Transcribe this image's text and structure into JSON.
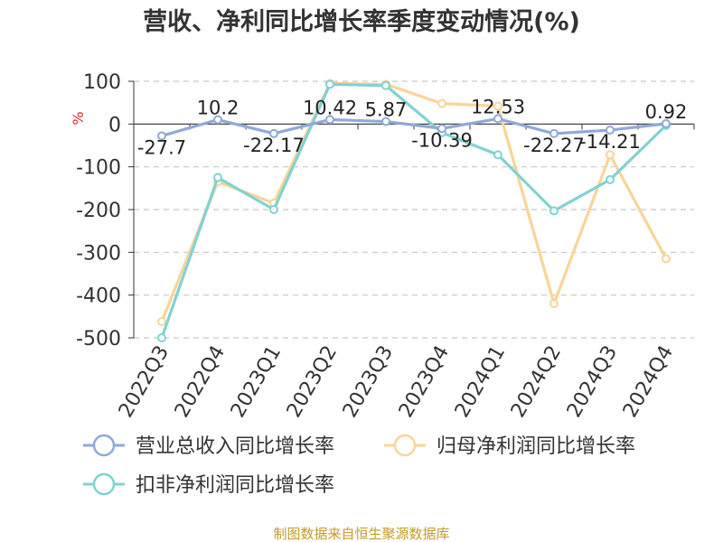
{
  "chart_data": {
    "type": "line",
    "title": "营收、净利同比增长率季度变动情况(%)",
    "ylabel": "%",
    "categories": [
      "2022Q3",
      "2022Q4",
      "2023Q1",
      "2023Q2",
      "2023Q3",
      "2023Q4",
      "2024Q1",
      "2024Q2",
      "2024Q3",
      "2024Q4"
    ],
    "ylim": [
      -500,
      100
    ],
    "yticks": [
      "100",
      "0",
      "-100",
      "-200",
      "-300",
      "-400",
      "-500"
    ],
    "grid": true,
    "legend_position": "bottom",
    "series": [
      {
        "name": "营业总收入同比增长率",
        "color": "#8fa9d8",
        "values": [
          -27.7,
          10.2,
          -22.17,
          10.42,
          5.87,
          -10.39,
          12.53,
          -22.27,
          -14.21,
          0.92
        ],
        "labels": [
          "-27.7",
          "10.2",
          "-22.17",
          "10.42",
          "5.87",
          "-10.39",
          "12.53",
          "-22.27",
          "-14.21",
          "0.92"
        ]
      },
      {
        "name": "归母净利润同比增长率",
        "color": "#f8d597",
        "values": [
          -462,
          -135,
          -185,
          95,
          93,
          48,
          42,
          -420,
          -72,
          -315
        ]
      },
      {
        "name": "扣非净利润同比增长率",
        "color": "#7fd3d3",
        "values": [
          -500,
          -125,
          -200,
          93,
          90,
          -20,
          -72,
          -203,
          -130,
          -3
        ]
      }
    ]
  },
  "footer": {
    "source": "制图数据来自恒生聚源数据库"
  }
}
